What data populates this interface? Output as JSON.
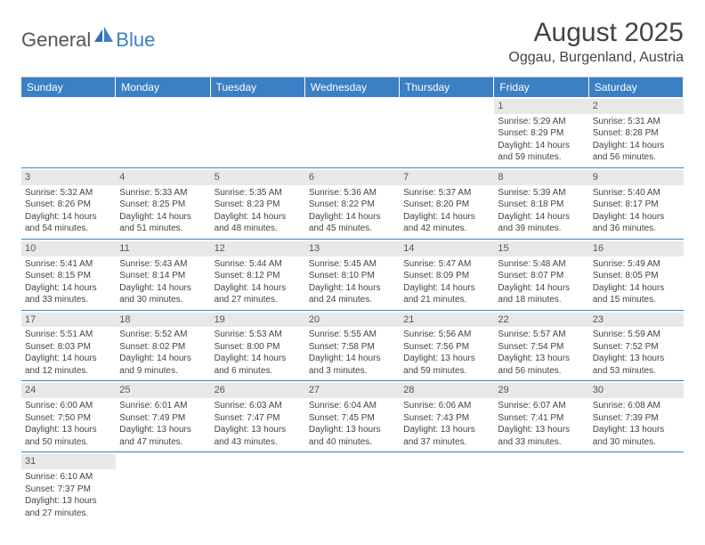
{
  "logo": {
    "text1": "General",
    "text2": "Blue"
  },
  "title": "August 2025",
  "location": "Oggau, Burgenland, Austria",
  "colors": {
    "header_bg": "#3b7fc4",
    "header_text": "#ffffff",
    "daynum_bg": "#e8e8e8",
    "cell_border": "#3b7fc4",
    "text": "#444444"
  },
  "day_headers": [
    "Sunday",
    "Monday",
    "Tuesday",
    "Wednesday",
    "Thursday",
    "Friday",
    "Saturday"
  ],
  "weeks": [
    [
      {
        "empty": true
      },
      {
        "empty": true
      },
      {
        "empty": true
      },
      {
        "empty": true
      },
      {
        "empty": true
      },
      {
        "day": "1",
        "sunrise": "Sunrise: 5:29 AM",
        "sunset": "Sunset: 8:29 PM",
        "daylight1": "Daylight: 14 hours",
        "daylight2": "and 59 minutes."
      },
      {
        "day": "2",
        "sunrise": "Sunrise: 5:31 AM",
        "sunset": "Sunset: 8:28 PM",
        "daylight1": "Daylight: 14 hours",
        "daylight2": "and 56 minutes."
      }
    ],
    [
      {
        "day": "3",
        "sunrise": "Sunrise: 5:32 AM",
        "sunset": "Sunset: 8:26 PM",
        "daylight1": "Daylight: 14 hours",
        "daylight2": "and 54 minutes."
      },
      {
        "day": "4",
        "sunrise": "Sunrise: 5:33 AM",
        "sunset": "Sunset: 8:25 PM",
        "daylight1": "Daylight: 14 hours",
        "daylight2": "and 51 minutes."
      },
      {
        "day": "5",
        "sunrise": "Sunrise: 5:35 AM",
        "sunset": "Sunset: 8:23 PM",
        "daylight1": "Daylight: 14 hours",
        "daylight2": "and 48 minutes."
      },
      {
        "day": "6",
        "sunrise": "Sunrise: 5:36 AM",
        "sunset": "Sunset: 8:22 PM",
        "daylight1": "Daylight: 14 hours",
        "daylight2": "and 45 minutes."
      },
      {
        "day": "7",
        "sunrise": "Sunrise: 5:37 AM",
        "sunset": "Sunset: 8:20 PM",
        "daylight1": "Daylight: 14 hours",
        "daylight2": "and 42 minutes."
      },
      {
        "day": "8",
        "sunrise": "Sunrise: 5:39 AM",
        "sunset": "Sunset: 8:18 PM",
        "daylight1": "Daylight: 14 hours",
        "daylight2": "and 39 minutes."
      },
      {
        "day": "9",
        "sunrise": "Sunrise: 5:40 AM",
        "sunset": "Sunset: 8:17 PM",
        "daylight1": "Daylight: 14 hours",
        "daylight2": "and 36 minutes."
      }
    ],
    [
      {
        "day": "10",
        "sunrise": "Sunrise: 5:41 AM",
        "sunset": "Sunset: 8:15 PM",
        "daylight1": "Daylight: 14 hours",
        "daylight2": "and 33 minutes."
      },
      {
        "day": "11",
        "sunrise": "Sunrise: 5:43 AM",
        "sunset": "Sunset: 8:14 PM",
        "daylight1": "Daylight: 14 hours",
        "daylight2": "and 30 minutes."
      },
      {
        "day": "12",
        "sunrise": "Sunrise: 5:44 AM",
        "sunset": "Sunset: 8:12 PM",
        "daylight1": "Daylight: 14 hours",
        "daylight2": "and 27 minutes."
      },
      {
        "day": "13",
        "sunrise": "Sunrise: 5:45 AM",
        "sunset": "Sunset: 8:10 PM",
        "daylight1": "Daylight: 14 hours",
        "daylight2": "and 24 minutes."
      },
      {
        "day": "14",
        "sunrise": "Sunrise: 5:47 AM",
        "sunset": "Sunset: 8:09 PM",
        "daylight1": "Daylight: 14 hours",
        "daylight2": "and 21 minutes."
      },
      {
        "day": "15",
        "sunrise": "Sunrise: 5:48 AM",
        "sunset": "Sunset: 8:07 PM",
        "daylight1": "Daylight: 14 hours",
        "daylight2": "and 18 minutes."
      },
      {
        "day": "16",
        "sunrise": "Sunrise: 5:49 AM",
        "sunset": "Sunset: 8:05 PM",
        "daylight1": "Daylight: 14 hours",
        "daylight2": "and 15 minutes."
      }
    ],
    [
      {
        "day": "17",
        "sunrise": "Sunrise: 5:51 AM",
        "sunset": "Sunset: 8:03 PM",
        "daylight1": "Daylight: 14 hours",
        "daylight2": "and 12 minutes."
      },
      {
        "day": "18",
        "sunrise": "Sunrise: 5:52 AM",
        "sunset": "Sunset: 8:02 PM",
        "daylight1": "Daylight: 14 hours",
        "daylight2": "and 9 minutes."
      },
      {
        "day": "19",
        "sunrise": "Sunrise: 5:53 AM",
        "sunset": "Sunset: 8:00 PM",
        "daylight1": "Daylight: 14 hours",
        "daylight2": "and 6 minutes."
      },
      {
        "day": "20",
        "sunrise": "Sunrise: 5:55 AM",
        "sunset": "Sunset: 7:58 PM",
        "daylight1": "Daylight: 14 hours",
        "daylight2": "and 3 minutes."
      },
      {
        "day": "21",
        "sunrise": "Sunrise: 5:56 AM",
        "sunset": "Sunset: 7:56 PM",
        "daylight1": "Daylight: 13 hours",
        "daylight2": "and 59 minutes."
      },
      {
        "day": "22",
        "sunrise": "Sunrise: 5:57 AM",
        "sunset": "Sunset: 7:54 PM",
        "daylight1": "Daylight: 13 hours",
        "daylight2": "and 56 minutes."
      },
      {
        "day": "23",
        "sunrise": "Sunrise: 5:59 AM",
        "sunset": "Sunset: 7:52 PM",
        "daylight1": "Daylight: 13 hours",
        "daylight2": "and 53 minutes."
      }
    ],
    [
      {
        "day": "24",
        "sunrise": "Sunrise: 6:00 AM",
        "sunset": "Sunset: 7:50 PM",
        "daylight1": "Daylight: 13 hours",
        "daylight2": "and 50 minutes."
      },
      {
        "day": "25",
        "sunrise": "Sunrise: 6:01 AM",
        "sunset": "Sunset: 7:49 PM",
        "daylight1": "Daylight: 13 hours",
        "daylight2": "and 47 minutes."
      },
      {
        "day": "26",
        "sunrise": "Sunrise: 6:03 AM",
        "sunset": "Sunset: 7:47 PM",
        "daylight1": "Daylight: 13 hours",
        "daylight2": "and 43 minutes."
      },
      {
        "day": "27",
        "sunrise": "Sunrise: 6:04 AM",
        "sunset": "Sunset: 7:45 PM",
        "daylight1": "Daylight: 13 hours",
        "daylight2": "and 40 minutes."
      },
      {
        "day": "28",
        "sunrise": "Sunrise: 6:06 AM",
        "sunset": "Sunset: 7:43 PM",
        "daylight1": "Daylight: 13 hours",
        "daylight2": "and 37 minutes."
      },
      {
        "day": "29",
        "sunrise": "Sunrise: 6:07 AM",
        "sunset": "Sunset: 7:41 PM",
        "daylight1": "Daylight: 13 hours",
        "daylight2": "and 33 minutes."
      },
      {
        "day": "30",
        "sunrise": "Sunrise: 6:08 AM",
        "sunset": "Sunset: 7:39 PM",
        "daylight1": "Daylight: 13 hours",
        "daylight2": "and 30 minutes."
      }
    ],
    [
      {
        "day": "31",
        "sunrise": "Sunrise: 6:10 AM",
        "sunset": "Sunset: 7:37 PM",
        "daylight1": "Daylight: 13 hours",
        "daylight2": "and 27 minutes."
      },
      {
        "empty": true
      },
      {
        "empty": true
      },
      {
        "empty": true
      },
      {
        "empty": true
      },
      {
        "empty": true
      },
      {
        "empty": true
      }
    ]
  ]
}
